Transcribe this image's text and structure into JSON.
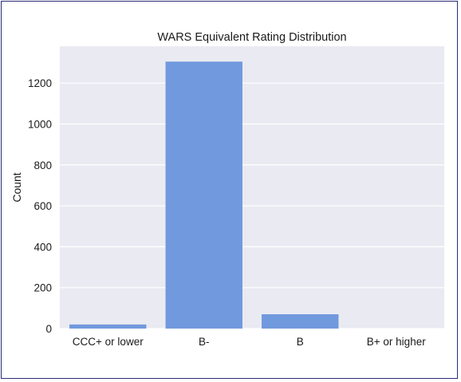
{
  "chart_data": {
    "type": "bar",
    "title": "WARS Equivalent Rating Distribution",
    "xlabel": "",
    "ylabel": "Count",
    "categories": [
      "CCC+ or lower",
      "B-",
      "B",
      "B+ or higher"
    ],
    "values": [
      20,
      1305,
      70,
      0
    ],
    "ylim": [
      0,
      1380
    ],
    "yticks": [
      0,
      200,
      400,
      600,
      800,
      1000,
      1200
    ],
    "grid": true,
    "colors": {
      "bar": "#7199dd",
      "background": "#eaeaf2",
      "grid": "#ffffff",
      "frame": "#2b2b78"
    }
  }
}
